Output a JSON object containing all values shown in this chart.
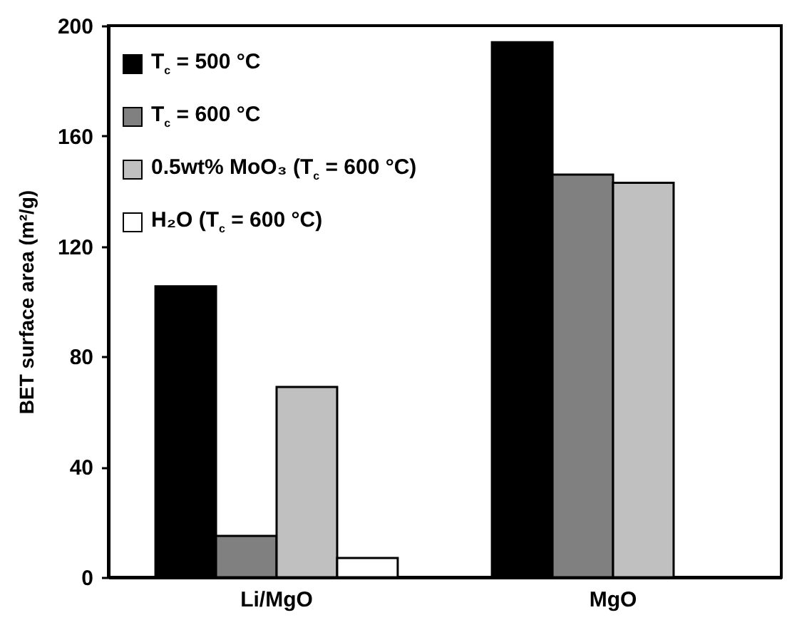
{
  "chart_data": {
    "type": "bar",
    "ylabel": "BET surface area (m²/g)",
    "categories": [
      "Li/MgO",
      "MgO"
    ],
    "series": [
      {
        "name": "T$_{c}$ = 500 °C",
        "color": "#000000",
        "values": [
          105.5,
          194
        ]
      },
      {
        "name": "T$_{c}$ = 600 °C",
        "color": "#808080",
        "values": [
          15,
          146
        ]
      },
      {
        "name": "0.5wt% MoO₃ (T$_{c}$ = 600 °C)",
        "color": "#c0c0c0",
        "values": [
          69,
          143
        ]
      },
      {
        "name": "H₂O (T$_{c}$ = 600 °C)",
        "color": "#ffffff",
        "values": [
          7,
          null
        ]
      }
    ],
    "ylim": [
      0,
      200
    ],
    "yticks": [
      0,
      40,
      80,
      120,
      160,
      200
    ],
    "grid": false,
    "legend": "top left"
  }
}
